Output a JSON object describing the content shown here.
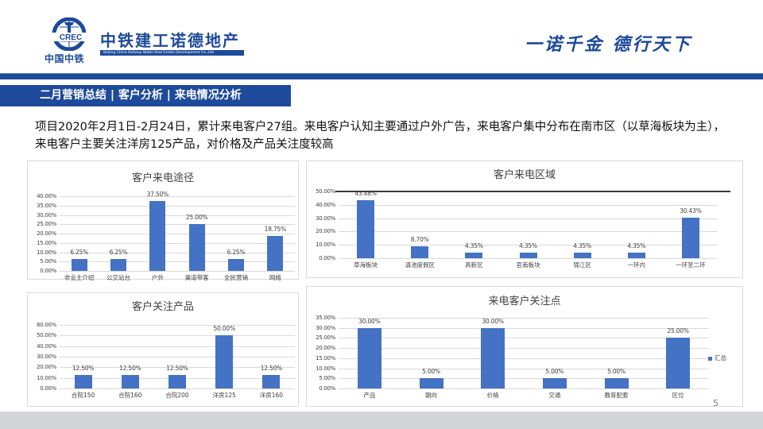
{
  "header": {
    "logo_text": "中国中铁",
    "logo_emblem_letters": "CREC",
    "brand_name": "中铁建工诺德地产",
    "brand_english": "Beijing China Railway Noble Real Estate Development Co.,Ltd.",
    "slogan": "一诺千金  德行天下",
    "brand_color": "#1d4a9a"
  },
  "section_title": "二月营销总结 | 客户分析 | 来电情况分析",
  "summary": "项目2020年2月1日-2月24日，累计来电客户27组。来电客户认知主要通过户外广告，来电客户集中分布在南市区（以草海板块为主），来电客户主要关注洋房125产品，对价格及产品关注度较高",
  "page_number": "5",
  "bar_color": "#4472c4",
  "chart_data": [
    {
      "type": "bar",
      "title": "客户来电途径",
      "categories": [
        "非业主介绍",
        "公交站台",
        "户外",
        "渠道带客",
        "全民营销",
        "网络"
      ],
      "values": [
        6.25,
        6.25,
        37.5,
        25.0,
        6.25,
        18.75
      ],
      "value_labels": [
        "6.25%",
        "6.25%",
        "37.50%",
        "25.00%",
        "6.25%",
        "18.75%"
      ],
      "yticks": [
        "0.00%",
        "5.00%",
        "10.00%",
        "15.00%",
        "20.00%",
        "25.00%",
        "30.00%",
        "35.00%",
        "40.00%"
      ],
      "ylim": [
        0,
        40
      ],
      "grid": true,
      "xlabel": "",
      "ylabel": ""
    },
    {
      "type": "bar",
      "title": "客户来电区域",
      "categories": [
        "草海板块",
        "滇池度假区",
        "高新区",
        "官南板块",
        "锦江区",
        "一环内",
        "一环至二环"
      ],
      "values": [
        43.48,
        8.7,
        4.35,
        4.35,
        4.35,
        4.35,
        30.43
      ],
      "value_labels": [
        "43.48%",
        "8.70%",
        "4.35%",
        "4.35%",
        "4.35%",
        "4.35%",
        "30.43%"
      ],
      "yticks": [
        "0.00%",
        "10.00%",
        "20.00%",
        "30.00%",
        "40.00%",
        "50.00%"
      ],
      "ylim": [
        0,
        50
      ],
      "grid": true,
      "annotation": "dark horizontal line drawn at 50.00%",
      "xlabel": "",
      "ylabel": ""
    },
    {
      "type": "bar",
      "title": "客户关注产品",
      "categories": [
        "合院150",
        "合院160",
        "合院200",
        "洋房125",
        "洋房160"
      ],
      "values": [
        12.5,
        12.5,
        12.5,
        50.0,
        12.5
      ],
      "value_labels": [
        "12.50%",
        "12.50%",
        "12.50%",
        "50.00%",
        "12.50%"
      ],
      "yticks": [
        "0.00%",
        "10.00%",
        "20.00%",
        "30.00%",
        "40.00%",
        "50.00%",
        "60.00%"
      ],
      "ylim": [
        0,
        60
      ],
      "grid": true,
      "xlabel": "",
      "ylabel": ""
    },
    {
      "type": "bar",
      "title": "来电客户关注点",
      "categories": [
        "产品",
        "朝向",
        "价格",
        "交通",
        "教育配套",
        "区位"
      ],
      "values": [
        30.0,
        5.0,
        30.0,
        5.0,
        5.0,
        25.0
      ],
      "value_labels": [
        "30.00%",
        "5.00%",
        "30.00%",
        "5.00%",
        "5.00%",
        "25.00%"
      ],
      "yticks": [
        "0.00%",
        "5.00%",
        "10.00%",
        "15.00%",
        "20.00%",
        "25.00%",
        "30.00%",
        "35.00%"
      ],
      "ylim": [
        0,
        35
      ],
      "grid": true,
      "legend": [
        "汇总"
      ],
      "legend_position": "right",
      "xlabel": "",
      "ylabel": ""
    }
  ]
}
